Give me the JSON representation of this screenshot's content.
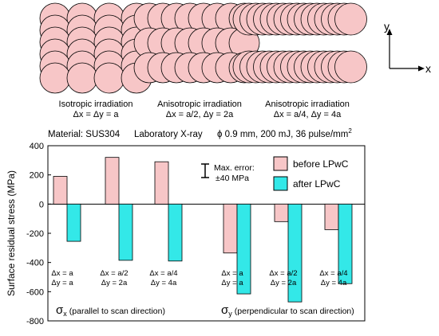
{
  "schematics": [
    {
      "line1": "Isotropic irradiation",
      "line2": "Δx = Δy = a"
    },
    {
      "line1": "Anisotropic irradiation",
      "line2": "Δx = a/2,  Δy = 2a"
    },
    {
      "line1": "Anisotropic irradiation",
      "line2": "Δx = a/4,  Δy = 4a"
    }
  ],
  "axes_icon": {
    "y_label": "y",
    "x_label": "x"
  },
  "conditions": {
    "material": "Material:  SUS304",
    "source": "Laboratory  X-ray",
    "params_main": "ϕ 0.9 mm, 200 mJ, 36 pulse/mm",
    "params_sup": "2"
  },
  "error_note": {
    "line1": "Max. error:",
    "line2": "±40 MPa"
  },
  "group_labels": {
    "sx_symbol": "σ",
    "sx_sub": "x",
    "sx_text": "(parallel to scan direction)",
    "sy_symbol": "σ",
    "sy_sub": "y",
    "sy_text": "(perpendicular to scan direction)"
  },
  "colors": {
    "before": "#f7c6c7",
    "after": "#33e8e8",
    "circle_fill": "#f7c6c7",
    "edge": "#000000"
  },
  "chart_data": {
    "type": "bar",
    "ylabel": "Surface residual stress (MPa)",
    "ylim": [
      -800,
      400
    ],
    "yticks": [
      400,
      200,
      0,
      -200,
      -400,
      -600,
      -800
    ],
    "legend_position": "top-right",
    "categories": [
      {
        "line1": "Δx = a",
        "line2": "Δy = a"
      },
      {
        "line1": "Δx = a/2",
        "line2": "Δy = 2a"
      },
      {
        "line1": "Δx = a/4",
        "line2": "Δy = 4a"
      },
      {
        "line1": "Δx = a",
        "line2": "Δy = a"
      },
      {
        "line1": "Δx = a/2",
        "line2": "Δy = 2a"
      },
      {
        "line1": "Δx = a/4",
        "line2": "Δy = 4a"
      }
    ],
    "series": [
      {
        "name": "before LPwC",
        "values": [
          190,
          320,
          290,
          -335,
          -120,
          -175
        ]
      },
      {
        "name": "after LPwC",
        "values": [
          -255,
          -385,
          -390,
          -615,
          -670,
          -545
        ]
      }
    ]
  }
}
